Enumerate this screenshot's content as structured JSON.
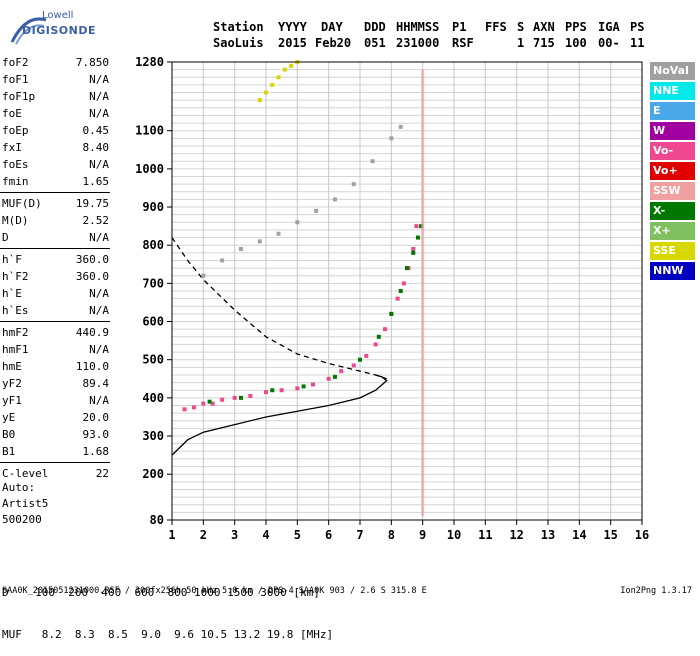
{
  "logo": {
    "line1": "Lowell",
    "line2": "DIGISONDE"
  },
  "header": {
    "row1": [
      "Station",
      "YYYY",
      "DAY",
      "DDD",
      "HHMMSS",
      "P1",
      "FFS",
      "S",
      "AXN",
      "PPS",
      "IGA",
      "PS"
    ],
    "row2": [
      "SaoLuis",
      "2015",
      "Feb20",
      "051",
      "231000",
      "RSF",
      "",
      "1",
      "715",
      "100",
      "00-",
      "11"
    ]
  },
  "parameters": [
    {
      "label": "foF2",
      "value": "7.850"
    },
    {
      "label": "foF1",
      "value": "N/A"
    },
    {
      "label": "foF1p",
      "value": "N/A"
    },
    {
      "label": "foE",
      "value": "N/A"
    },
    {
      "label": "foEp",
      "value": "0.45"
    },
    {
      "label": "fxI",
      "value": "8.40"
    },
    {
      "label": "foEs",
      "value": "N/A"
    },
    {
      "label": "fmin",
      "value": "1.65"
    },
    {
      "label": "MUF(D)",
      "value": "19.75"
    },
    {
      "label": "M(D)",
      "value": "2.52"
    },
    {
      "label": "D",
      "value": "N/A"
    },
    {
      "label": "h`F",
      "value": "360.0"
    },
    {
      "label": "h`F2",
      "value": "360.0"
    },
    {
      "label": "h`E",
      "value": "N/A"
    },
    {
      "label": "h`Es",
      "value": "N/A"
    },
    {
      "label": "hmF2",
      "value": "440.9"
    },
    {
      "label": "hmF1",
      "value": "N/A"
    },
    {
      "label": "hmE",
      "value": "110.0"
    },
    {
      "label": "yF2",
      "value": "89.4"
    },
    {
      "label": "yF1",
      "value": "N/A"
    },
    {
      "label": "yE",
      "value": "20.0"
    },
    {
      "label": "B0",
      "value": "93.0"
    },
    {
      "label": "B1",
      "value": "1.68"
    },
    {
      "label": "C-level",
      "value": "22"
    }
  ],
  "auto": {
    "line1": "Auto:",
    "line2": "Artist5",
    "line3": "500200"
  },
  "dmuf": {
    "d_line": "D    100  200  400  600  800 1000 1500 3000 [km]",
    "muf_line": "MUF   8.2  8.3  8.5  9.0  9.6 10.5 13.2 19.8 [MHz]"
  },
  "footer": {
    "left": "SAA0K_2015051231000.RSF / 300fx256h 50 kHz 5.0 km / DPS-4 SAA0K 903 / 2.6 S 315.8 E",
    "right": "Ion2Png 1.3.17"
  },
  "legend": [
    {
      "label": "NoVal",
      "color": "#a0a0a0"
    },
    {
      "label": "NNE",
      "color": "#00e8e8"
    },
    {
      "label": "E",
      "color": "#4aa8e8"
    },
    {
      "label": "W",
      "color": "#a000a0"
    },
    {
      "label": "Vo-",
      "color": "#f04890"
    },
    {
      "label": "Vo+",
      "color": "#e00000"
    },
    {
      "label": "SSW",
      "color": "#f0a0a0"
    },
    {
      "label": "X-",
      "color": "#007800"
    },
    {
      "label": "X+",
      "color": "#80c060"
    },
    {
      "label": "SSE",
      "color": "#d8d800"
    },
    {
      "label": "NNW",
      "color": "#0000c0"
    }
  ],
  "chart_data": {
    "type": "scatter",
    "title": "",
    "xlabel": "",
    "ylabel": "",
    "xlim": [
      1,
      16
    ],
    "ylim": [
      80,
      1280
    ],
    "xticks": [
      "1",
      "2",
      "3",
      "4",
      "5",
      "6",
      "7",
      "8",
      "9",
      "10",
      "11",
      "12",
      "13",
      "14",
      "15",
      "16"
    ],
    "yticks": [
      "80",
      "200",
      "300",
      "400",
      "500",
      "600",
      "700",
      "800",
      "900",
      "1000",
      "1100",
      "1280"
    ],
    "grid": true,
    "legend_placement": "right",
    "series": [
      {
        "label_ref": "Vo-",
        "color": "#f04890",
        "x": [
          1.4,
          1.7,
          2.0,
          2.3,
          2.6,
          3.0,
          3.5,
          4.0,
          4.5,
          5.0,
          5.5,
          6.0,
          6.4,
          6.8,
          7.2,
          7.5,
          7.8,
          8.0,
          8.2,
          8.4,
          8.55,
          8.7,
          8.8
        ],
        "y": [
          370,
          375,
          385,
          385,
          395,
          400,
          405,
          415,
          420,
          425,
          435,
          450,
          470,
          485,
          510,
          540,
          580,
          620,
          660,
          700,
          740,
          790,
          850
        ]
      },
      {
        "label_ref": "X-",
        "color": "#007800",
        "x": [
          2.2,
          3.2,
          4.2,
          5.2,
          6.2,
          7.0,
          7.6,
          8.0,
          8.3,
          8.5,
          8.7,
          8.85,
          8.95
        ],
        "y": [
          390,
          400,
          420,
          430,
          455,
          500,
          560,
          620,
          680,
          740,
          780,
          820,
          850
        ]
      },
      {
        "label_ref": "NoVal",
        "color": "#a0a0a0",
        "x": [
          2.0,
          2.6,
          3.2,
          3.8,
          4.4,
          5.0,
          5.6,
          6.2,
          6.8,
          7.4,
          8.0,
          8.3
        ],
        "y": [
          720,
          760,
          790,
          810,
          830,
          860,
          890,
          920,
          960,
          1020,
          1080,
          1110
        ]
      },
      {
        "label_ref": "SSE",
        "color": "#d8d800",
        "x": [
          3.8,
          4.0,
          4.2,
          4.4,
          4.6,
          4.8,
          5.0
        ],
        "y": [
          1180,
          1200,
          1220,
          1240,
          1260,
          1270,
          1280
        ]
      }
    ],
    "profile_curve_solid": {
      "x": [
        1.0,
        1.5,
        2.0,
        3.0,
        4.0,
        5.0,
        6.0,
        7.0,
        7.5,
        7.85,
        7.7,
        7.5
      ],
      "y": [
        250,
        290,
        310,
        330,
        350,
        365,
        380,
        400,
        420,
        445,
        455,
        460
      ]
    },
    "profile_curve_dashed": {
      "x": [
        1.0,
        1.5,
        2.0,
        3.0,
        4.0,
        5.0,
        6.0,
        7.0,
        7.5,
        7.85
      ],
      "y": [
        820,
        760,
        710,
        630,
        560,
        515,
        490,
        470,
        460,
        450
      ]
    }
  }
}
